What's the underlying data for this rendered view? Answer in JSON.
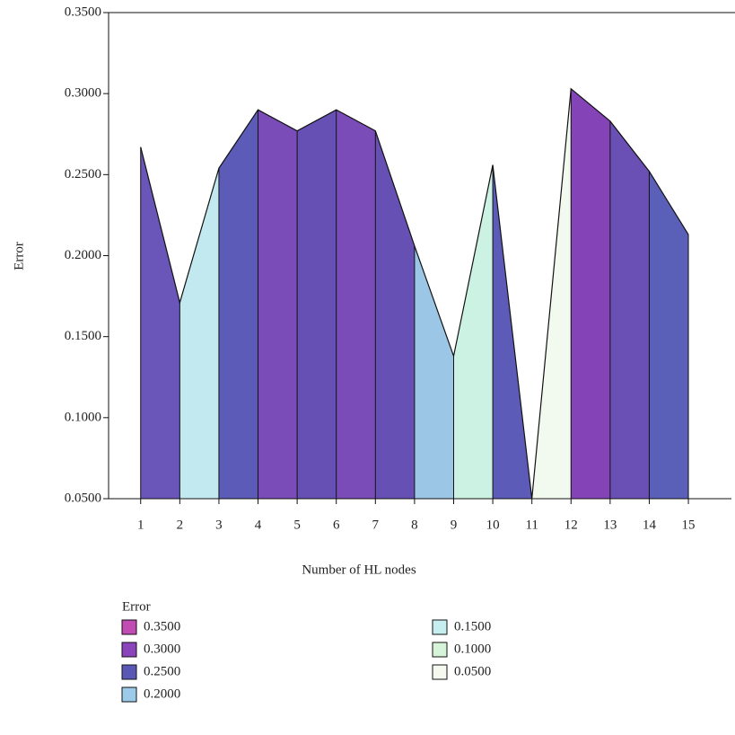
{
  "chart_data": {
    "type": "area",
    "x_label": "Number of HL nodes",
    "y_label": "Error",
    "x": [
      1,
      2,
      3,
      4,
      5,
      6,
      7,
      8,
      9,
      10,
      11,
      12,
      13,
      14,
      15
    ],
    "values": [
      0.267,
      0.171,
      0.254,
      0.29,
      0.277,
      0.29,
      0.277,
      0.206,
      0.138,
      0.256,
      0.05,
      0.303,
      0.283,
      0.252,
      0.213
    ],
    "segment_colors": [
      "#6a55b8",
      "#c2e8f0",
      "#5c5cb8",
      "#7a4cb8",
      "#6650b4",
      "#7a4cb8",
      "#6650b4",
      "#9cc6e6",
      "#ccf2e4",
      "#5c5cb8",
      "#f2faf0",
      "#8444b8",
      "#6a50b4",
      "#5a60b8"
    ],
    "xlim": [
      0.18,
      16.1
    ],
    "ylim": [
      0.05,
      0.35
    ],
    "xticks": [
      1,
      2,
      3,
      4,
      5,
      6,
      7,
      8,
      9,
      10,
      11,
      12,
      13,
      14,
      15
    ],
    "yticks": [
      {
        "value": 0.05,
        "label": "0.0500"
      },
      {
        "value": 0.1,
        "label": "0.1000"
      },
      {
        "value": 0.15,
        "label": "0.1500"
      },
      {
        "value": 0.2,
        "label": "0.2000"
      },
      {
        "value": 0.25,
        "label": "0.2500"
      },
      {
        "value": 0.3,
        "label": "0.3000"
      },
      {
        "value": 0.35,
        "label": "0.3500"
      }
    ],
    "legend": {
      "title": "Error",
      "items": [
        {
          "label": "0.3500",
          "color": "#c04cb4"
        },
        {
          "label": "0.3000",
          "color": "#8a44bc"
        },
        {
          "label": "0.2500",
          "color": "#5a58b4"
        },
        {
          "label": "0.2000",
          "color": "#9ccbea"
        },
        {
          "label": "0.1500",
          "color": "#c6eef0"
        },
        {
          "label": "0.1000",
          "color": "#d6f4d8"
        },
        {
          "label": "0.0500",
          "color": "#f4faf0"
        }
      ]
    }
  }
}
